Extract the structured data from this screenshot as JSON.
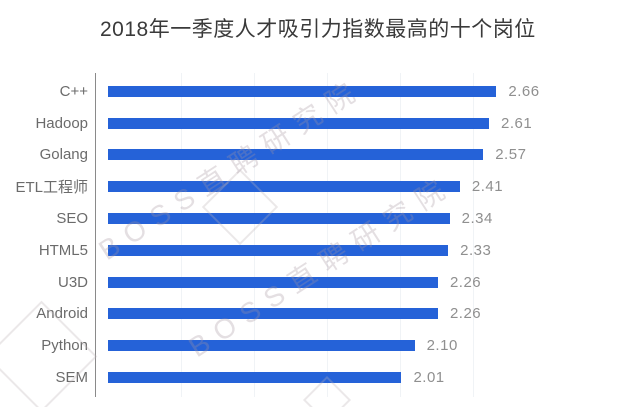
{
  "title": "2018年一季度人才吸引力指数最高的十个岗位",
  "watermark": {
    "text": "BOSS直聘研究院"
  },
  "chart_data": {
    "type": "bar",
    "orientation": "horizontal",
    "title": "2018年一季度人才吸引力指数最高的十个岗位",
    "categories": [
      "C++",
      "Hadoop",
      "Golang",
      "ETL工程师",
      "SEO",
      "HTML5",
      "U3D",
      "Android",
      "Python",
      "SEM"
    ],
    "values": [
      2.66,
      2.61,
      2.57,
      2.41,
      2.34,
      2.33,
      2.26,
      2.26,
      2.1,
      2.01
    ],
    "value_labels": [
      "2.66",
      "2.61",
      "2.57",
      "2.41",
      "2.34",
      "2.33",
      "2.26",
      "2.26",
      "2.10",
      "2.01"
    ],
    "xlabel": "",
    "ylabel": "",
    "xlim": [
      0,
      2.8
    ],
    "grid": "faint-vertical",
    "legend": "none",
    "bar_color": "#2562d8",
    "category_label_color": "#6b6b6b",
    "value_label_color": "#8f8f8f",
    "axis_line_color": "#8a8a8a"
  }
}
